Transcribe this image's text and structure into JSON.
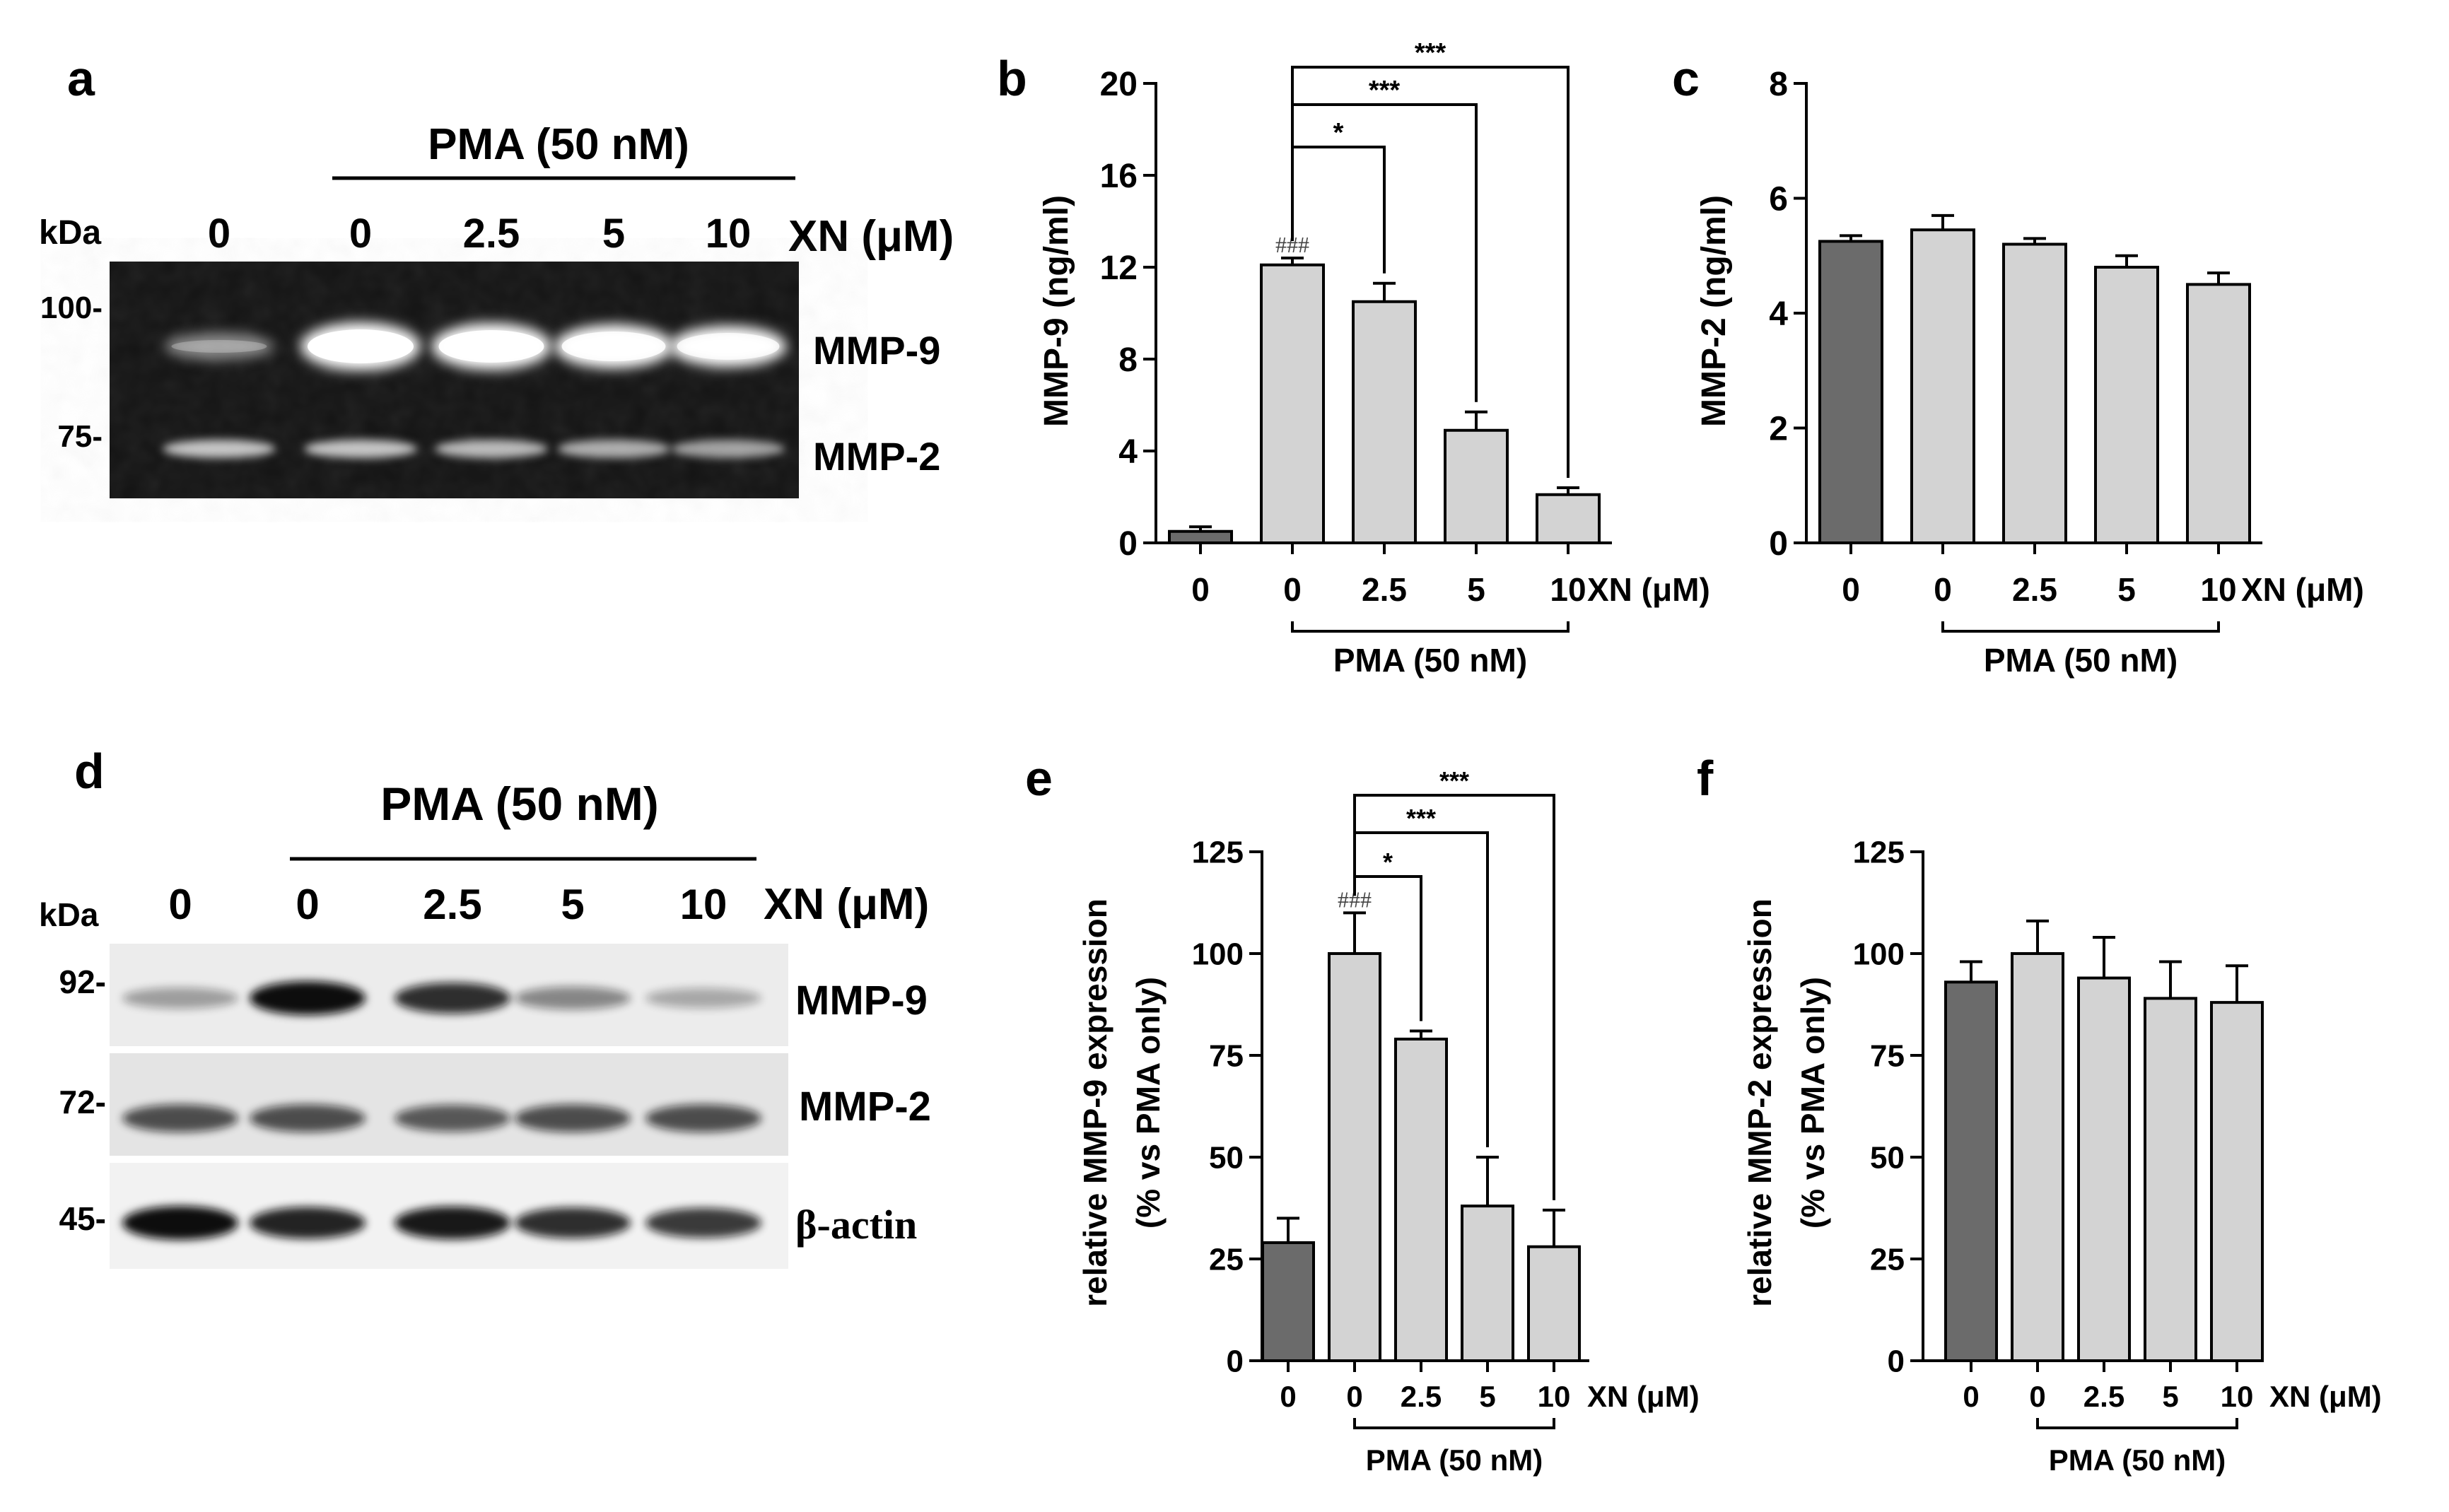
{
  "figure": {
    "panel_letters": [
      "a",
      "b",
      "c",
      "d",
      "e",
      "f"
    ],
    "treatment_label": "PMA (50 nM)",
    "xn_label": "XN (μM)",
    "kda_label": "kDa"
  },
  "blot_a": {
    "lanes": [
      "0",
      "0",
      "2.5",
      "5",
      "10"
    ],
    "markers": [
      "100-",
      "75-"
    ],
    "bands": [
      "MMP-9",
      "MMP-2"
    ],
    "mmp9_intensity": [
      0.25,
      1.0,
      0.95,
      0.85,
      0.75
    ],
    "mmp2_intensity": [
      0.75,
      0.75,
      0.7,
      0.65,
      0.6
    ]
  },
  "blot_d": {
    "lanes": [
      "0",
      "0",
      "2.5",
      "5",
      "10"
    ],
    "markers": [
      "92-",
      "72-",
      "45-"
    ],
    "bands": [
      "MMP-9",
      "MMP-2",
      "β-actin"
    ],
    "mmp9_intensity": [
      0.35,
      1.0,
      0.85,
      0.45,
      0.3
    ],
    "mmp2_intensity": [
      0.7,
      0.7,
      0.65,
      0.7,
      0.7
    ],
    "actin_intensity": [
      1.0,
      0.9,
      0.95,
      0.85,
      0.8
    ]
  },
  "chart_data": [
    {
      "panel": "b",
      "type": "bar",
      "categories": [
        "0",
        "0",
        "2.5",
        "5",
        "10"
      ],
      "values": [
        0.5,
        12.1,
        10.5,
        4.9,
        2.1
      ],
      "errors": [
        0.2,
        0.3,
        0.8,
        0.8,
        0.3
      ],
      "bar_colors": [
        "#6b6b6b",
        "#d3d3d3",
        "#d3d3d3",
        "#d3d3d3",
        "#d3d3d3"
      ],
      "ylabel": "MMP-9 (ng/ml)",
      "xlabel": "XN (μM)",
      "group_label": "PMA (50 nM)",
      "ylim": [
        0,
        20
      ],
      "yticks": [
        0,
        4,
        8,
        12,
        16,
        20
      ],
      "hash_annotation": {
        "bar": 1,
        "text": "###"
      },
      "significance": [
        {
          "from": 1,
          "to": 2,
          "text": "*"
        },
        {
          "from": 1,
          "to": 3,
          "text": "***"
        },
        {
          "from": 1,
          "to": 4,
          "text": "***"
        }
      ]
    },
    {
      "panel": "c",
      "type": "bar",
      "categories": [
        "0",
        "0",
        "2.5",
        "5",
        "10"
      ],
      "values": [
        5.25,
        5.45,
        5.2,
        4.8,
        4.5
      ],
      "errors": [
        0.1,
        0.25,
        0.1,
        0.2,
        0.2
      ],
      "bar_colors": [
        "#6b6b6b",
        "#d3d3d3",
        "#d3d3d3",
        "#d3d3d3",
        "#d3d3d3"
      ],
      "ylabel": "MMP-2 (ng/ml)",
      "xlabel": "XN (μM)",
      "group_label": "PMA (50 nM)",
      "ylim": [
        0,
        8
      ],
      "yticks": [
        0,
        2,
        4,
        6,
        8
      ],
      "significance": []
    },
    {
      "panel": "e",
      "type": "bar",
      "categories": [
        "0",
        "0",
        "2.5",
        "5",
        "10"
      ],
      "values": [
        29,
        100,
        79,
        38,
        28
      ],
      "errors": [
        6,
        10,
        2,
        12,
        9
      ],
      "bar_colors": [
        "#6b6b6b",
        "#d3d3d3",
        "#d3d3d3",
        "#d3d3d3",
        "#d3d3d3"
      ],
      "ylabel": [
        "relative MMP-9 expression",
        "(% vs PMA only)"
      ],
      "xlabel": "XN (μM)",
      "group_label": "PMA (50 nM)",
      "ylim": [
        0,
        125
      ],
      "yticks": [
        0,
        25,
        50,
        75,
        100,
        125
      ],
      "hash_annotation": {
        "bar": 1,
        "text": "###"
      },
      "significance": [
        {
          "from": 1,
          "to": 2,
          "text": "*"
        },
        {
          "from": 1,
          "to": 3,
          "text": "***"
        },
        {
          "from": 1,
          "to": 4,
          "text": "***"
        }
      ]
    },
    {
      "panel": "f",
      "type": "bar",
      "categories": [
        "0",
        "0",
        "2.5",
        "5",
        "10"
      ],
      "values": [
        93,
        100,
        94,
        89,
        88
      ],
      "errors": [
        5,
        8,
        10,
        9,
        9
      ],
      "bar_colors": [
        "#6b6b6b",
        "#d3d3d3",
        "#d3d3d3",
        "#d3d3d3",
        "#d3d3d3"
      ],
      "ylabel": [
        "relative MMP-2 expression",
        "(% vs PMA only)"
      ],
      "xlabel": "XN (μM)",
      "group_label": "PMA (50 nM)",
      "ylim": [
        0,
        125
      ],
      "yticks": [
        0,
        25,
        50,
        75,
        100,
        125
      ],
      "significance": []
    }
  ]
}
